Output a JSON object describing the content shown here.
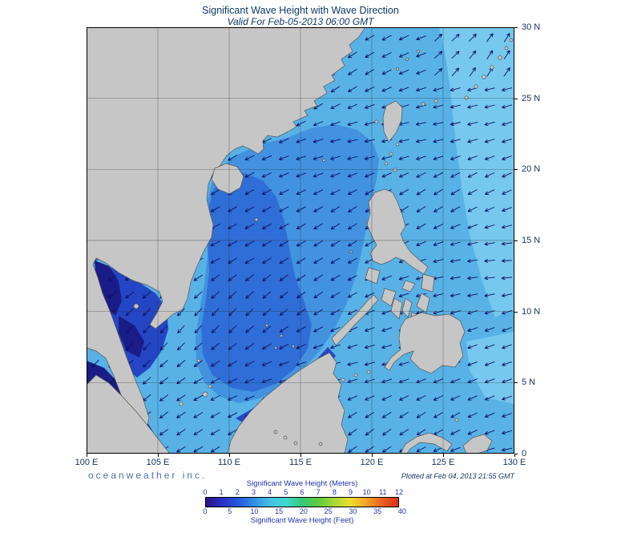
{
  "colors": {
    "title_text": "#0c3a62",
    "axis_text": "#16315e",
    "legend_text": "#2233aa",
    "brand_text": "#4a6fae",
    "plotted_text": "#16315e"
  },
  "header": {
    "title": "Significant Wave Height with Wave Direction",
    "subtitle": "Valid For Feb-05-2013 06:00 GMT"
  },
  "map": {
    "lon_ticks": [
      "100 E",
      "105 E",
      "110 E",
      "115 E",
      "120 E",
      "125 E",
      "130 E"
    ],
    "lat_ticks": [
      "30 N",
      "25 N",
      "20 N",
      "15 N",
      "10 N",
      "5 N",
      "0"
    ],
    "land_color": "#c6c6c6",
    "coast_color": "#555555",
    "grid_color": "#2a2a2a",
    "arrow_color": "#0d1166",
    "wave_colors": [
      "#1a1d87",
      "#2446c4",
      "#2f6ed6",
      "#4292e0",
      "#58b2e6",
      "#76c8ee"
    ]
  },
  "footer": {
    "brand": "oceanweather inc.",
    "plotted": "Plotted at Feb 04, 2013 21:55 GMT"
  },
  "legend": {
    "meters_label": "Significant Wave Height (Meters)",
    "feet_label": "Significant Wave Height (Feet)",
    "meters_ticks": [
      "0",
      "1",
      "2",
      "3",
      "4",
      "5",
      "6",
      "7",
      "8",
      "9",
      "10",
      "11",
      "12"
    ],
    "feet_ticks": [
      "0",
      "5",
      "10",
      "15",
      "20",
      "25",
      "30",
      "35",
      "40"
    ],
    "gradient": [
      "#2a1582",
      "#2b2fc3",
      "#2458dd",
      "#2f8ee4",
      "#45c0e8",
      "#3fd9d0",
      "#37c878",
      "#5ccb40",
      "#a6d934",
      "#eedd30",
      "#f2a426",
      "#ea5f1e",
      "#d93020"
    ]
  }
}
